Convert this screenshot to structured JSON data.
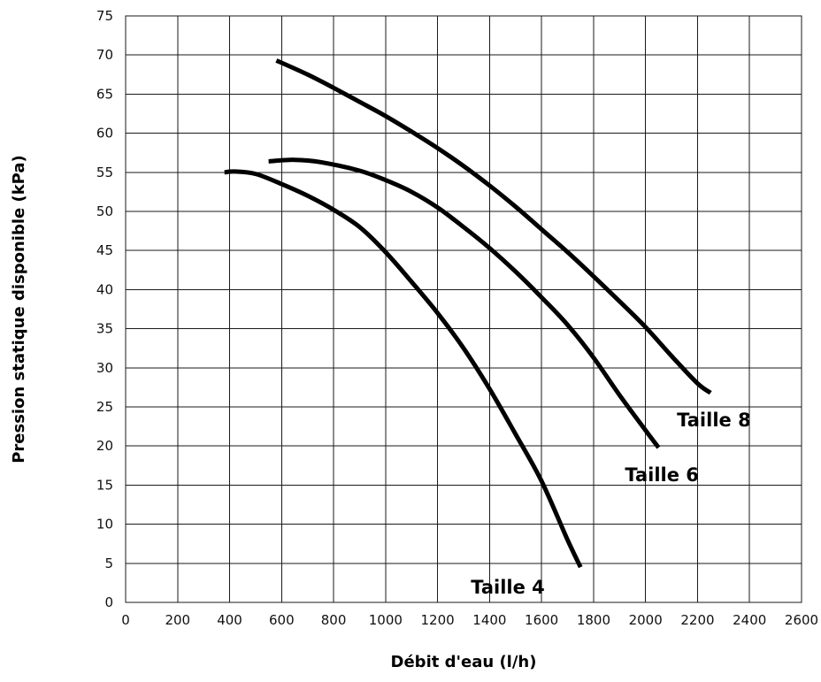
{
  "chart_data": {
    "type": "line",
    "title": "",
    "xlabel": "Débit d'eau (l/h)",
    "ylabel": "Pression statique disponible (kPa)",
    "xlim": [
      0,
      2600
    ],
    "ylim": [
      0,
      75
    ],
    "xticks": [
      0,
      200,
      400,
      600,
      800,
      1000,
      1200,
      1400,
      1600,
      1800,
      2000,
      2200,
      2400,
      2600
    ],
    "yticks": [
      0,
      5,
      10,
      15,
      20,
      25,
      30,
      35,
      40,
      45,
      50,
      55,
      60,
      65,
      70,
      75
    ],
    "grid": true,
    "legend": "none",
    "line_color": "#000000",
    "series": [
      {
        "name": "Taille 4",
        "x": [
          380,
          420,
          500,
          600,
          700,
          800,
          900,
          1000,
          1100,
          1200,
          1300,
          1400,
          1500,
          1600,
          1700,
          1750
        ],
        "y": [
          55,
          55.1,
          54.8,
          53.5,
          52,
          50.2,
          48,
          44.8,
          41,
          37,
          32.5,
          27.3,
          21.5,
          15.5,
          8,
          4.5
        ]
      },
      {
        "name": "Taille 6",
        "x": [
          550,
          650,
          750,
          900,
          1000,
          1100,
          1200,
          1300,
          1400,
          1500,
          1600,
          1700,
          1800,
          1900,
          2000,
          2050
        ],
        "y": [
          56.4,
          56.6,
          56.3,
          55.2,
          54,
          52.5,
          50.5,
          48,
          45.3,
          42.3,
          39,
          35.5,
          31.3,
          26.5,
          22,
          19.8
        ]
      },
      {
        "name": "Taille 8",
        "x": [
          580,
          700,
          800,
          900,
          1000,
          1100,
          1200,
          1300,
          1400,
          1500,
          1600,
          1700,
          1800,
          1900,
          2000,
          2100,
          2200,
          2250
        ],
        "y": [
          69.3,
          67.5,
          65.8,
          64,
          62.2,
          60.2,
          58.1,
          55.8,
          53.3,
          50.6,
          47.7,
          44.8,
          41.7,
          38.5,
          35.2,
          31.5,
          28,
          26.8
        ]
      }
    ]
  }
}
